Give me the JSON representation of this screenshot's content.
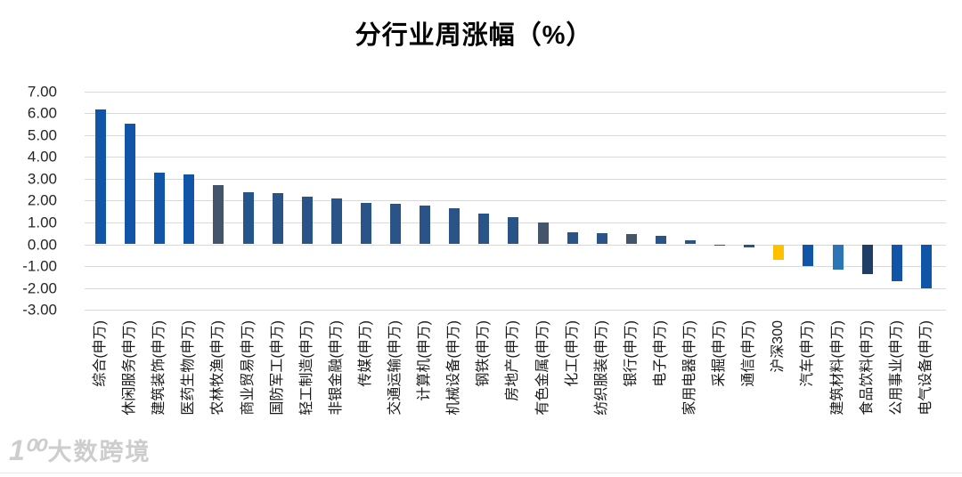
{
  "watermark": {
    "icon_label": "1⁰⁰",
    "text": "大数跨境"
  },
  "colors": {
    "background": "#ffffff",
    "grid": "#d9d9d9",
    "title_text": "#000000",
    "axis_text": "#262626",
    "bright_blue": "#1155A8",
    "muted_navy": "#2A5488",
    "slate_gray": "#44546A",
    "light_blue": "#2E75B6",
    "dark_navy": "#203F66",
    "highlight_yellow": "#FFC000"
  },
  "chart_data": {
    "type": "bar",
    "title": "分行业周涨幅（%）",
    "xlabel": "",
    "ylabel": "",
    "ylim": [
      -3,
      7
    ],
    "ytick_interval": 1,
    "ytick_labels": [
      "7.00",
      "6.00",
      "5.00",
      "4.00",
      "3.00",
      "2.00",
      "1.00",
      "0.00",
      "-1.00",
      "-2.00",
      "-3.00"
    ],
    "grid": true,
    "legend": false,
    "x_label_rotation_degrees": -90,
    "bars": [
      {
        "label": "综合(申万)",
        "value": 6.19,
        "color": "#1155A8"
      },
      {
        "label": "休闲服务(申万)",
        "value": 5.52,
        "color": "#1155A8"
      },
      {
        "label": "建筑装饰(申万)",
        "value": 3.28,
        "color": "#1155A8"
      },
      {
        "label": "医药生物(申万)",
        "value": 3.18,
        "color": "#1155A8"
      },
      {
        "label": "农林牧渔(申万)",
        "value": 2.72,
        "color": "#44546A"
      },
      {
        "label": "商业贸易(申万)",
        "value": 2.38,
        "color": "#24568C"
      },
      {
        "label": "国防军工(申万)",
        "value": 2.36,
        "color": "#2A5488"
      },
      {
        "label": "轻工制造(申万)",
        "value": 2.16,
        "color": "#2A5488"
      },
      {
        "label": "非银金融(申万)",
        "value": 2.11,
        "color": "#2A5488"
      },
      {
        "label": "传媒(申万)",
        "value": 1.89,
        "color": "#2A5488"
      },
      {
        "label": "交通运输(申万)",
        "value": 1.87,
        "color": "#2A5488"
      },
      {
        "label": "计算机(申万)",
        "value": 1.76,
        "color": "#2A5488"
      },
      {
        "label": "机械设备(申万)",
        "value": 1.63,
        "color": "#2A5488"
      },
      {
        "label": "钢铁(申万)",
        "value": 1.39,
        "color": "#2A5488"
      },
      {
        "label": "房地产(申万)",
        "value": 1.26,
        "color": "#2A5488"
      },
      {
        "label": "有色金属(申万)",
        "value": 1.01,
        "color": "#44546A"
      },
      {
        "label": "化工(申万)",
        "value": 0.53,
        "color": "#2A5488"
      },
      {
        "label": "纺织服装(申万)",
        "value": 0.52,
        "color": "#2A5488"
      },
      {
        "label": "银行(申万)",
        "value": 0.45,
        "color": "#44546A"
      },
      {
        "label": "电子(申万)",
        "value": 0.4,
        "color": "#2A5488"
      },
      {
        "label": "家用电器(申万)",
        "value": 0.19,
        "color": "#2A5488"
      },
      {
        "label": "采掘(申万)",
        "value": -0.03,
        "color": "#2A5488"
      },
      {
        "label": "通信(申万)",
        "value": -0.16,
        "color": "#2A5488"
      },
      {
        "label": "沪深300",
        "value": -0.7,
        "color": "#FFC000"
      },
      {
        "label": "汽车(申万)",
        "value": -1.01,
        "color": "#1155A8"
      },
      {
        "label": "建筑材料(申万)",
        "value": -1.15,
        "color": "#2E75B6"
      },
      {
        "label": "食品饮料(申万)",
        "value": -1.35,
        "color": "#203F66"
      },
      {
        "label": "公用事业(申万)",
        "value": -1.7,
        "color": "#1155A8"
      },
      {
        "label": "电气设备(申万)",
        "value": -2.02,
        "color": "#1155A8"
      }
    ]
  }
}
